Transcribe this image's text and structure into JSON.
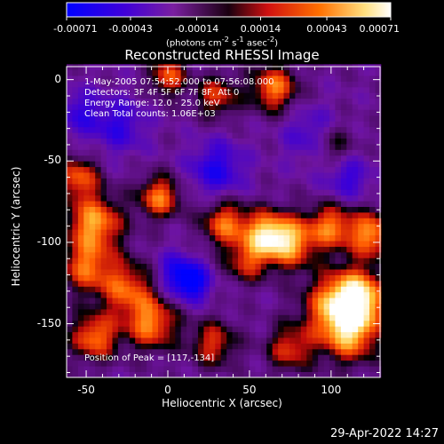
{
  "colorbar": {
    "ticks": [
      {
        "value": -0.00071,
        "label": "-0.00071"
      },
      {
        "value": -0.00043,
        "label": "-0.00043"
      },
      {
        "value": -0.00014,
        "label": "-0.00014"
      },
      {
        "value": 0.00014,
        "label": "0.00014"
      },
      {
        "value": 0.00043,
        "label": "0.00043"
      },
      {
        "value": 0.00071,
        "label": "0.00071"
      }
    ],
    "range": [
      -0.00071,
      0.00071
    ],
    "units_prefix": "(photons cm",
    "units_e1": "-2",
    "units_mid": " s",
    "units_e2": "-1",
    "units_mid2": " asec",
    "units_e3": "-2",
    "units_suffix": ")"
  },
  "chart_data": {
    "type": "heatmap",
    "title": "Reconstructed RHESSI Image",
    "xlabel": "Heliocentric X (arcsec)",
    "ylabel": "Heliocentric Y (arcsec)",
    "xlim": [
      -62,
      130
    ],
    "ylim": [
      -183,
      8
    ],
    "x_ticks": [
      -50,
      0,
      50,
      100
    ],
    "y_ticks": [
      0,
      -50,
      -100,
      -150
    ],
    "peak": [
      117,
      -134
    ],
    "colormap": [
      "#0000ff",
      "#5a00d0",
      "#7a1fa0",
      "#000000",
      "#d01010",
      "#ff8000",
      "#ffe080",
      "#ffffff"
    ],
    "blobs": [
      {
        "x": 117,
        "y": -134,
        "a": 1.0,
        "s": 12
      },
      {
        "x": 103,
        "y": -140,
        "a": 0.8,
        "s": 14
      },
      {
        "x": 112,
        "y": -158,
        "a": 0.7,
        "s": 12
      },
      {
        "x": 125,
        "y": -95,
        "a": 0.85,
        "s": 10
      },
      {
        "x": 100,
        "y": -90,
        "a": 0.75,
        "s": 10
      },
      {
        "x": 75,
        "y": -100,
        "a": 0.85,
        "s": 11
      },
      {
        "x": 60,
        "y": -95,
        "a": 0.9,
        "s": 10
      },
      {
        "x": 35,
        "y": -88,
        "a": 0.75,
        "s": 10
      },
      {
        "x": 48,
        "y": -112,
        "a": 0.55,
        "s": 9
      },
      {
        "x": -45,
        "y": -88,
        "a": 0.9,
        "s": 12
      },
      {
        "x": -50,
        "y": -115,
        "a": 0.7,
        "s": 11
      },
      {
        "x": -55,
        "y": -60,
        "a": 0.7,
        "s": 9
      },
      {
        "x": -5,
        "y": -72,
        "a": 0.8,
        "s": 9
      },
      {
        "x": -25,
        "y": -128,
        "a": 0.7,
        "s": 12
      },
      {
        "x": -10,
        "y": -150,
        "a": 0.8,
        "s": 11
      },
      {
        "x": -45,
        "y": -158,
        "a": 0.8,
        "s": 10
      },
      {
        "x": 28,
        "y": -162,
        "a": 0.6,
        "s": 10
      },
      {
        "x": 75,
        "y": -165,
        "a": 0.6,
        "s": 10
      },
      {
        "x": 65,
        "y": -5,
        "a": 0.8,
        "s": 10
      },
      {
        "x": 30,
        "y": -10,
        "a": 0.6,
        "s": 9
      },
      {
        "x": 0,
        "y": 2,
        "a": 0.7,
        "s": 8
      },
      {
        "x": 100,
        "y": -40,
        "a": 0.55,
        "s": 10
      },
      {
        "x": 15,
        "y": -125,
        "a": -0.7,
        "s": 8
      },
      {
        "x": 90,
        "y": -35,
        "a": -0.5,
        "s": 12
      },
      {
        "x": 30,
        "y": -55,
        "a": -0.55,
        "s": 12
      },
      {
        "x": -30,
        "y": -28,
        "a": -0.45,
        "s": 12
      },
      {
        "x": 5,
        "y": -118,
        "a": -0.5,
        "s": 9
      },
      {
        "x": -55,
        "y": -20,
        "a": -0.4,
        "s": 10
      },
      {
        "x": 110,
        "y": -60,
        "a": -0.45,
        "s": 10
      }
    ]
  },
  "info": {
    "time": "1-May-2005 07:54:52.000 to 07:56:08.000",
    "detectors": "Detectors: 3F 4F 5F 6F 7F 8F, Att 0",
    "energy": "Energy Range: 12.0 - 25.0 keV",
    "clean": "Clean     Total counts: 1.06E+03",
    "peak": "Position of Peak = [117,-134]"
  },
  "footer_date": "29-Apr-2022 14:27"
}
